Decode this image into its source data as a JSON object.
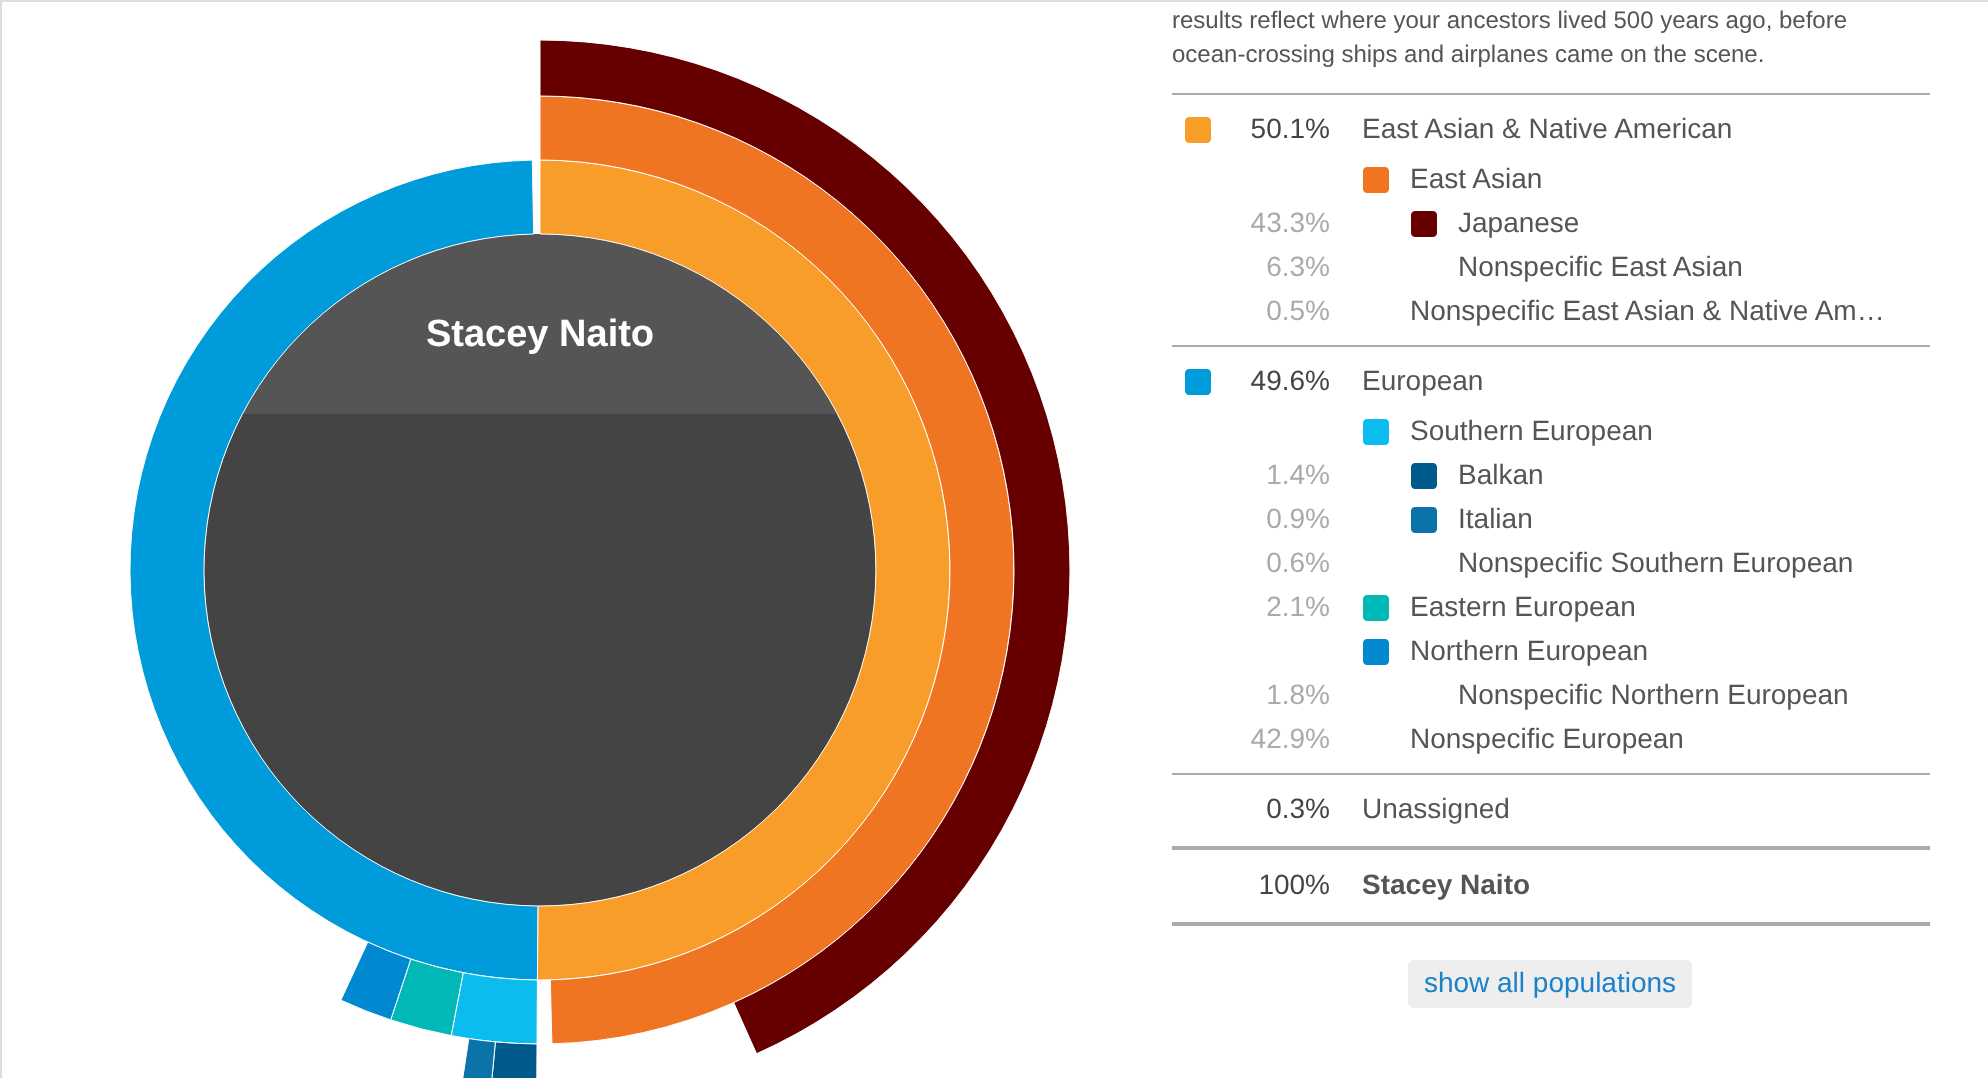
{
  "chart_data": {
    "type": "other",
    "title": "Stacey Naito",
    "subtitle": "results reflect where your ancestors lived 500 years ago, before ocean-crossing ships and airplanes came on the scene.",
    "categories": [
      "East Asian & Native American",
      "East Asian",
      "Japanese",
      "Nonspecific East Asian",
      "Nonspecific East Asian & Native Am…",
      "European",
      "Southern European",
      "Balkan",
      "Italian",
      "Nonspecific Southern European",
      "Eastern European",
      "Northern European",
      "Nonspecific Northern European",
      "Nonspecific European",
      "Unassigned",
      "Stacey Naito"
    ],
    "values": [
      50.1,
      null,
      43.3,
      6.3,
      0.5,
      49.6,
      null,
      1.4,
      0.9,
      0.6,
      2.1,
      null,
      1.8,
      42.9,
      0.3,
      100
    ],
    "value_labels": [
      "50.1%",
      null,
      "43.3%",
      "6.3%",
      "0.5%",
      "49.6%",
      null,
      "1.4%",
      "0.9%",
      "0.6%",
      "2.1%",
      null,
      "1.8%",
      "42.9%",
      "0.3%",
      "100%"
    ],
    "colors": [
      "#f99d2a",
      "#f07522",
      "#660000",
      null,
      null,
      "#009bda",
      "#0bbcee",
      "#005a8b",
      "#0a74aa",
      null,
      "#00b8b5",
      "#0089d1",
      null,
      null,
      null,
      null
    ],
    "annotations": [
      "show all populations"
    ]
  }
}
